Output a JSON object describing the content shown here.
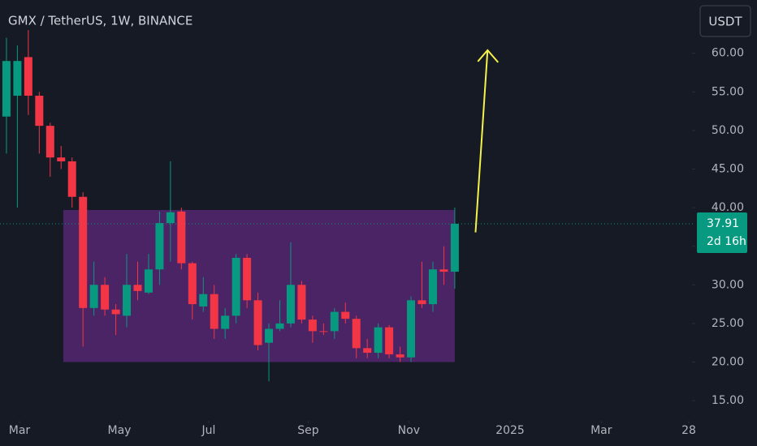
{
  "chart_data": {
    "type": "candlestick",
    "title": "GMX / TetherUS, 1W, BINANCE",
    "currency_button": "USDT",
    "x": [
      0,
      1,
      2,
      3,
      4,
      5,
      6,
      7,
      8,
      9,
      10,
      11,
      12,
      13,
      14,
      15,
      16,
      17,
      18,
      19,
      20,
      21,
      22,
      23,
      24,
      25,
      26,
      27,
      28,
      29,
      30,
      31,
      32,
      33,
      34,
      35,
      36,
      37,
      38,
      39,
      40,
      41
    ],
    "open": [
      51.8,
      54.5,
      59.5,
      54.5,
      50.6,
      46.5,
      46.0,
      41.4,
      27.0,
      30.0,
      26.8,
      26.0,
      30.0,
      29.0,
      32.0,
      38.0,
      39.5,
      32.8,
      27.2,
      28.8,
      24.3,
      26.0,
      33.5,
      28.0,
      22.5,
      24.3,
      25.0,
      30.0,
      25.5,
      24.0,
      24.0,
      26.5,
      25.6,
      21.8,
      21.2,
      24.5,
      21.0,
      20.6,
      28.0,
      27.5,
      32.0,
      31.7
    ],
    "high": [
      62.0,
      61.0,
      63.0,
      55.0,
      51.0,
      48.0,
      46.5,
      42.0,
      33.0,
      31.0,
      27.5,
      34.0,
      33.0,
      34.0,
      39.5,
      46.0,
      40.0,
      33.0,
      31.0,
      30.0,
      27.0,
      34.0,
      34.0,
      29.0,
      25.0,
      28.0,
      35.5,
      30.5,
      26.0,
      25.0,
      27.0,
      27.7,
      26.0,
      23.0,
      25.0,
      24.8,
      22.0,
      28.5,
      33.0,
      33.0,
      35.0,
      40.0
    ],
    "low": [
      47.0,
      40.0,
      52.0,
      47.0,
      44.0,
      45.0,
      40.0,
      22.0,
      26.0,
      26.0,
      23.5,
      24.5,
      28.0,
      28.8,
      30.0,
      33.0,
      32.0,
      25.5,
      26.5,
      23.0,
      23.0,
      25.0,
      27.0,
      21.5,
      17.5,
      24.0,
      24.5,
      25.0,
      22.5,
      23.5,
      23.0,
      25.0,
      20.5,
      20.5,
      20.5,
      20.5,
      20.0,
      20.0,
      27.0,
      26.5,
      30.0,
      29.5
    ],
    "close": [
      59.0,
      59.0,
      54.5,
      50.6,
      46.5,
      46.0,
      41.4,
      27.0,
      30.0,
      26.8,
      26.2,
      30.0,
      29.2,
      32.0,
      38.0,
      39.4,
      32.8,
      27.5,
      28.8,
      24.3,
      26.0,
      33.5,
      28.0,
      22.2,
      24.3,
      25.0,
      30.0,
      25.5,
      24.0,
      23.9,
      26.5,
      25.6,
      21.8,
      21.2,
      24.5,
      21.0,
      20.6,
      28.0,
      27.5,
      32.0,
      31.7,
      37.91
    ],
    "up_color": "#089981",
    "down_color": "#f23645",
    "xlim": [
      -0.59,
      62.55
    ],
    "xticks": [
      {
        "value": 1.19,
        "label": "Mar"
      },
      {
        "value": 10.33,
        "label": "May"
      },
      {
        "value": 18.5,
        "label": "Jul"
      },
      {
        "value": 27.6,
        "label": "Sep"
      },
      {
        "value": 36.8,
        "label": "Nov"
      },
      {
        "value": 46.06,
        "label": "2025"
      },
      {
        "value": 54.4,
        "label": "Mar"
      },
      {
        "value": 62.4,
        "label": "28"
      }
    ],
    "ylim": [
      12.8,
      66.9
    ],
    "yticks": [
      {
        "value": 15,
        "label": "15.00"
      },
      {
        "value": 20,
        "label": "20.00"
      },
      {
        "value": 25,
        "label": "25.00"
      },
      {
        "value": 30,
        "label": "30.00"
      },
      {
        "value": 35,
        "label": "35.00"
      },
      {
        "value": 40,
        "label": "40.00"
      },
      {
        "value": 45,
        "label": "45.00"
      },
      {
        "value": 50,
        "label": "50.00"
      },
      {
        "value": 55,
        "label": "55.00"
      },
      {
        "value": 60,
        "label": "60.00"
      }
    ],
    "range_box": {
      "x": [
        5.2,
        41
      ],
      "top": 39.7,
      "bottom": 20,
      "color": "#4a2464"
    },
    "arrow": {
      "x": [
        42.9,
        44
      ],
      "y": [
        36.8,
        60.4
      ],
      "color": "#f5f24a"
    },
    "last_price": 37.91,
    "countdown": "2d 16h"
  }
}
